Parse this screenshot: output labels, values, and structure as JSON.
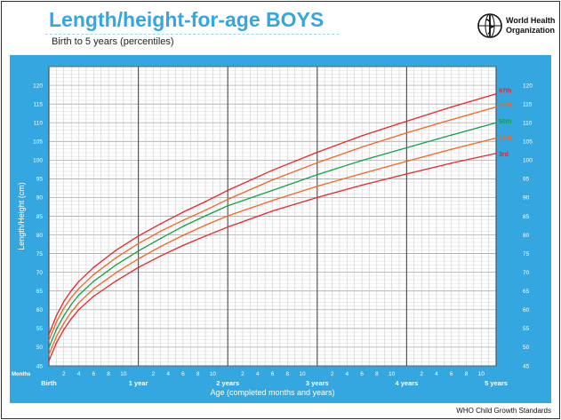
{
  "header": {
    "title": "Length/height-for-age BOYS",
    "subtitle": "Birth to 5 years (percentiles)",
    "org_name_line1": "World Health",
    "org_name_line2": "Organization"
  },
  "footer": {
    "credit": "WHO Child Growth Standards"
  },
  "colors": {
    "accent_blue": "#35a7e0",
    "p97": "#e8242c",
    "p85": "#f26522",
    "p50": "#12a04a",
    "p15": "#f26522",
    "p3": "#e8242c"
  },
  "chart_data": {
    "type": "line",
    "title": "Length/height-for-age BOYS",
    "subtitle": "Birth to 5 years (percentiles)",
    "xlabel": "Age (completed months and years)",
    "ylabel": "Length/Height (cm)",
    "xlim": [
      0,
      60
    ],
    "ylim": [
      45,
      125
    ],
    "y_ticks": [
      45,
      50,
      55,
      60,
      65,
      70,
      75,
      80,
      85,
      90,
      95,
      100,
      105,
      110,
      115,
      120
    ],
    "x_corner_label": "Months",
    "x_month_ticks": [
      2,
      4,
      6,
      8,
      10
    ],
    "year_labels": [
      {
        "x": 0,
        "label": "Birth"
      },
      {
        "x": 12,
        "label": "1 year"
      },
      {
        "x": 24,
        "label": "2 years"
      },
      {
        "x": 36,
        "label": "3 years"
      },
      {
        "x": 48,
        "label": "4 years"
      },
      {
        "x": 60,
        "label": "5 years"
      }
    ],
    "grid": true,
    "legend": "right",
    "x": [
      0,
      1,
      2,
      3,
      4,
      6,
      9,
      12,
      15,
      18,
      21,
      24,
      30,
      36,
      42,
      48,
      54,
      60
    ],
    "series": [
      {
        "name": "97th",
        "color_key": "p97",
        "values": [
          53.4,
          58.4,
          62.2,
          65.1,
          67.5,
          71.3,
          75.9,
          79.7,
          83.0,
          86.1,
          88.9,
          91.9,
          97.3,
          102.1,
          106.5,
          110.4,
          114.2,
          117.7
        ]
      },
      {
        "name": "85th",
        "color_key": "p85",
        "values": [
          51.8,
          56.7,
          60.4,
          63.3,
          65.6,
          69.4,
          73.9,
          77.7,
          81.0,
          83.9,
          86.6,
          89.5,
          94.7,
          99.3,
          103.5,
          107.3,
          110.8,
          114.2
        ]
      },
      {
        "name": "50th",
        "color_key": "p50",
        "values": [
          49.9,
          54.7,
          58.4,
          61.4,
          63.9,
          67.6,
          72.0,
          75.7,
          79.1,
          82.3,
          85.1,
          87.8,
          91.9,
          96.1,
          99.9,
          103.3,
          106.7,
          110.0
        ]
      },
      {
        "name": "15th",
        "color_key": "p15",
        "values": [
          48.0,
          52.8,
          56.4,
          59.4,
          61.8,
          65.6,
          69.9,
          73.6,
          76.9,
          79.9,
          82.6,
          85.1,
          89.2,
          93.0,
          96.4,
          99.7,
          102.9,
          105.9
        ]
      },
      {
        "name": "3rd",
        "color_key": "p3",
        "values": [
          46.3,
          51.1,
          54.7,
          57.6,
          60.0,
          63.6,
          67.7,
          71.3,
          74.4,
          77.2,
          79.7,
          82.1,
          86.4,
          90.0,
          93.3,
          96.3,
          99.2,
          101.8
        ]
      }
    ]
  }
}
